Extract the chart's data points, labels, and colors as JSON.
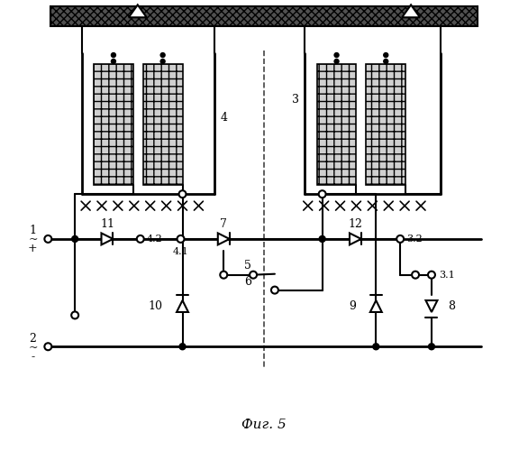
{
  "title": "Фиг. 5",
  "background": "#ffffff",
  "line_color": "#000000",
  "lw": 1.5
}
